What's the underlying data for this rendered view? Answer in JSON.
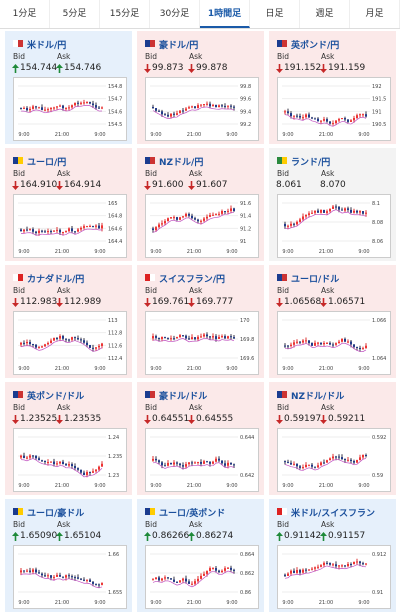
{
  "tabs": [
    "1分足",
    "5分足",
    "15分足",
    "30分足",
    "1時間足",
    "日足",
    "週足",
    "月足"
  ],
  "active_tab": 4,
  "cards": [
    {
      "pair": "米ドル/円",
      "bid_label": "Bid",
      "ask_label": "Ask",
      "bid": "154.744",
      "ask": "154.746",
      "direction": "up",
      "yticks": [
        "154.8",
        "154.7",
        "154.6",
        "154.5"
      ],
      "xticks": [
        "9:00",
        "21:00",
        "9:00"
      ]
    },
    {
      "pair": "豪ドル/円",
      "bid_label": "Bid",
      "ask_label": "Ask",
      "bid": "99.873",
      "ask": "99.878",
      "direction": "down",
      "yticks": [
        "99.8",
        "99.6",
        "99.4",
        "99.2"
      ],
      "xticks": [
        "9:00",
        "21:00",
        "9:00"
      ]
    },
    {
      "pair": "英ポンド/円",
      "bid_label": "Bid",
      "ask_label": "Ask",
      "bid": "191.152",
      "ask": "191.159",
      "direction": "down",
      "yticks": [
        "192",
        "191.5",
        "191",
        "190.5"
      ],
      "xticks": [
        "9:00",
        "21:00",
        "9:00"
      ]
    },
    {
      "pair": "ユーロ/円",
      "bid_label": "Bid",
      "ask_label": "Ask",
      "bid": "164.910",
      "ask": "164.914",
      "direction": "down",
      "yticks": [
        "165",
        "164.8",
        "164.6",
        "164.4"
      ],
      "xticks": [
        "9:00",
        "21:00",
        "9:00"
      ]
    },
    {
      "pair": "NZドル/円",
      "bid_label": "Bid",
      "ask_label": "Ask",
      "bid": "91.600",
      "ask": "91.607",
      "direction": "down",
      "yticks": [
        "91.6",
        "91.4",
        "91.2",
        "91"
      ],
      "xticks": [
        "9:00",
        "21:00",
        "9:00"
      ]
    },
    {
      "pair": "ランド/円",
      "bid_label": "Bid",
      "ask_label": "Ask",
      "bid": "8.061",
      "ask": "8.070",
      "direction": null,
      "yticks": [
        "8.1",
        "8.08",
        "8.06"
      ],
      "xticks": [
        "9:00",
        "21:00",
        "9:00"
      ]
    },
    {
      "pair": "カナダドル/円",
      "bid_label": "Bid",
      "ask_label": "Ask",
      "bid": "112.983",
      "ask": "112.989",
      "direction": "down",
      "yticks": [
        "113",
        "112.8",
        "112.6",
        "112.4"
      ],
      "xticks": [
        "9:00",
        "21:00",
        "9:00"
      ]
    },
    {
      "pair": "スイスフラン/円",
      "bid_label": "Bid",
      "ask_label": "Ask",
      "bid": "169.761",
      "ask": "169.777",
      "direction": "down",
      "yticks": [
        "170",
        "169.8",
        "169.6"
      ],
      "xticks": [
        "9:00",
        "21:00",
        "9:00"
      ]
    },
    {
      "pair": "ユーロ/ドル",
      "bid_label": "Bid",
      "ask_label": "Ask",
      "bid": "1.06568",
      "ask": "1.06571",
      "direction": "down",
      "yticks": [
        "1.066",
        "1.064"
      ],
      "xticks": [
        "9:00",
        "21:00",
        "9:00"
      ]
    },
    {
      "pair": "英ポンド/ドル",
      "bid_label": "Bid",
      "ask_label": "Ask",
      "bid": "1.23525",
      "ask": "1.23535",
      "direction": "down",
      "yticks": [
        "1.24",
        "1.235",
        "1.23"
      ],
      "xticks": [
        "9:00",
        "21:00",
        "9:00"
      ]
    },
    {
      "pair": "豪ドル/ドル",
      "bid_label": "Bid",
      "ask_label": "Ask",
      "bid": "0.64551",
      "ask": "0.64555",
      "direction": "down",
      "yticks": [
        "0.644",
        "0.642"
      ],
      "xticks": [
        "9:00",
        "21:00",
        "9:00"
      ]
    },
    {
      "pair": "NZドル/ドル",
      "bid_label": "Bid",
      "ask_label": "Ask",
      "bid": "0.59197",
      "ask": "0.59211",
      "direction": "down",
      "yticks": [
        "0.592",
        "0.59"
      ],
      "xticks": [
        "9:00",
        "21:00",
        "9:00"
      ]
    },
    {
      "pair": "ユーロ/豪ドル",
      "bid_label": "Bid",
      "ask_label": "Ask",
      "bid": "1.65090",
      "ask": "1.65104",
      "direction": "up",
      "yticks": [
        "1.66",
        "1.655"
      ],
      "xticks": [
        "9:00",
        "21:00",
        "9:00"
      ]
    },
    {
      "pair": "ユーロ/英ポンド",
      "bid_label": "Bid",
      "ask_label": "Ask",
      "bid": "0.86266",
      "ask": "0.86274",
      "direction": "up",
      "yticks": [
        "0.864",
        "0.862",
        "0.86"
      ],
      "xticks": [
        "9:00",
        "21:00",
        "9:00"
      ]
    },
    {
      "pair": "米ドル/スイスフラン",
      "bid_label": "Bid",
      "ask_label": "Ask",
      "bid": "0.91142",
      "ask": "0.91157",
      "direction": "up",
      "yticks": [
        "0.912",
        "0.91"
      ],
      "xticks": [
        "9:00",
        "21:00",
        "9:00"
      ]
    }
  ]
}
